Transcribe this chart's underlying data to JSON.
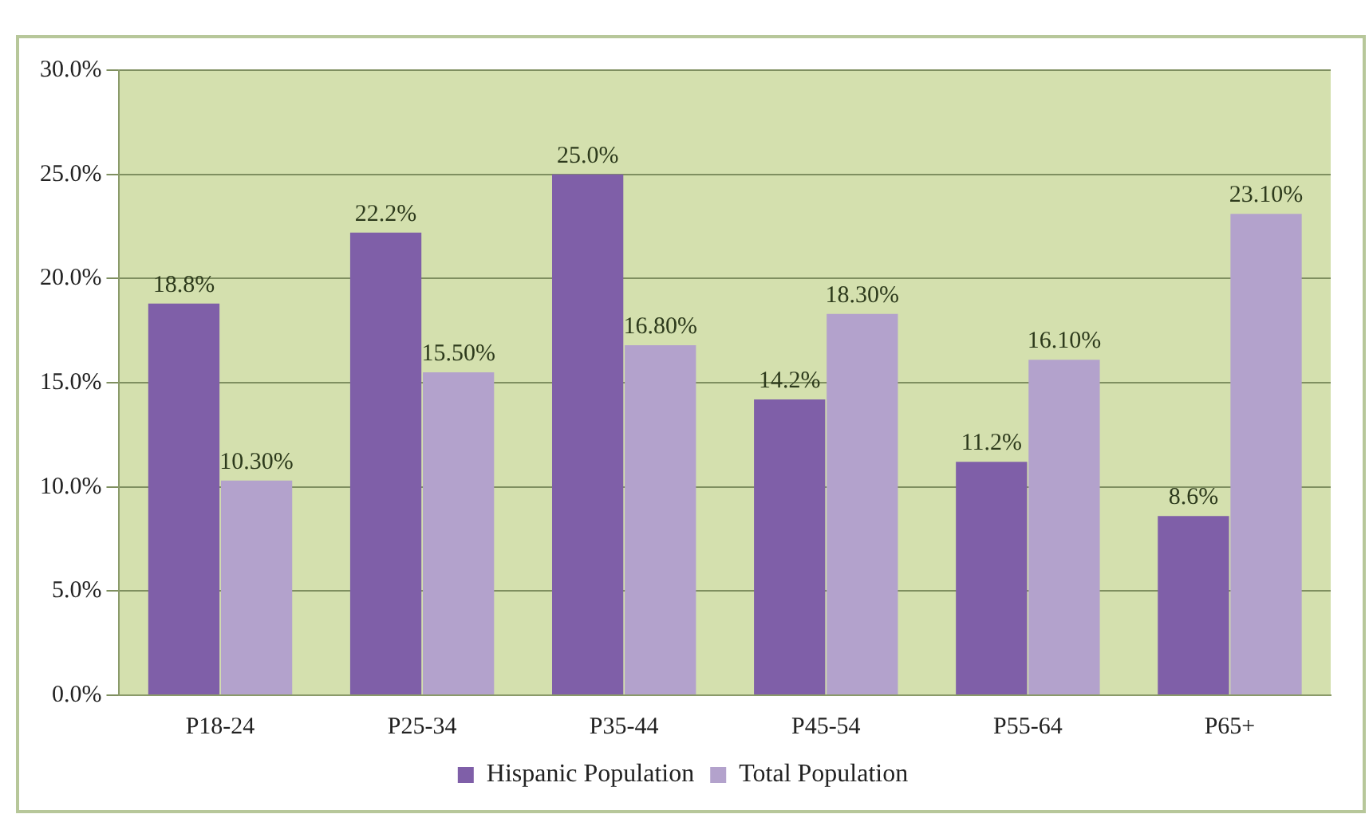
{
  "chart_data": {
    "type": "bar",
    "categories": [
      "P18-24",
      "P25-34",
      "P35-44",
      "P45-54",
      "P55-64",
      "P65+"
    ],
    "series": [
      {
        "name": "Hispanic Population",
        "color": "#7f5fa8",
        "values": [
          18.8,
          22.2,
          25.0,
          14.2,
          11.2,
          8.6
        ],
        "value_labels": [
          "18.8%",
          "22.2%",
          "25.0%",
          "14.2%",
          "11.2%",
          "8.6%"
        ]
      },
      {
        "name": "Total Population",
        "color": "#b3a2cc",
        "values": [
          10.3,
          15.5,
          16.8,
          18.3,
          16.1,
          23.1
        ],
        "value_labels": [
          "10.30%",
          "15.50%",
          "16.80%",
          "18.30%",
          "16.10%",
          "23.10%"
        ]
      }
    ],
    "ylim": [
      0,
      30
    ],
    "yticks": [
      {
        "value": 0,
        "label": "0.0%"
      },
      {
        "value": 5,
        "label": "5.0%"
      },
      {
        "value": 10,
        "label": "10.0%"
      },
      {
        "value": 15,
        "label": "15.0%"
      },
      {
        "value": 20,
        "label": "20.0%"
      },
      {
        "value": 25,
        "label": "25.0%"
      },
      {
        "value": 30,
        "label": "30.0%"
      }
    ],
    "grid": "y",
    "legend": "bottom"
  }
}
